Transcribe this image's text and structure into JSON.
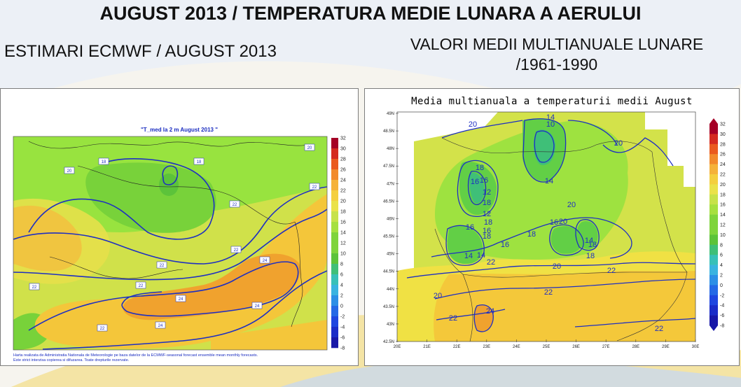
{
  "header": {
    "title": "AUGUST 2013 / TEMPERATURA MEDIE LUNARA A AERULUI",
    "left_subtitle": "ESTIMARI ECMWF / AUGUST 2013",
    "right_subtitle_line1": "VALORI MEDII MULTIANUALE LUNARE",
    "right_subtitle_line2": "/1961-1990"
  },
  "left_map": {
    "title": "\"T_med la 2 m August 2013 \"",
    "credit_line1": "Harta realizata de Administratia Nationala de Meteorologie pe baza datelor de la ECMWF-seasonal forecast ensemble mean monthly forecasts.",
    "credit_line2": "Este strict interzisa copierea si difuzarea. Toate drepturile rezervate.",
    "colorbar_labels": [
      "32",
      "30",
      "28",
      "26",
      "24",
      "22",
      "20",
      "18",
      "16",
      "14",
      "12",
      "10",
      "8",
      "6",
      "4",
      "2",
      "0",
      "-2",
      "-4",
      "-6",
      "-8"
    ],
    "contour_labels": [
      "18",
      "18",
      "20",
      "20",
      "22",
      "22",
      "22",
      "22",
      "22",
      "22",
      "22",
      "24",
      "24",
      "24",
      "24"
    ]
  },
  "right_map": {
    "title": "Media multianuala a temperaturii medii August",
    "colorbar_labels": [
      "32",
      "30",
      "28",
      "26",
      "24",
      "22",
      "20",
      "18",
      "16",
      "14",
      "12",
      "10",
      "8",
      "6",
      "4",
      "2",
      "0",
      "-2",
      "-4",
      "-6",
      "-8"
    ],
    "y_ticks": [
      "49N",
      "48.5N",
      "48N",
      "47.5N",
      "47N",
      "46.5N",
      "46N",
      "45.5N",
      "45N",
      "44.5N",
      "44N",
      "43.5N",
      "43N",
      "42.5N"
    ],
    "x_ticks": [
      "20E",
      "21E",
      "22E",
      "23E",
      "24E",
      "25E",
      "26E",
      "27E",
      "28E",
      "29E",
      "30E"
    ],
    "contour_labels": [
      "20",
      "20",
      "18",
      "16",
      "12",
      "18",
      "12",
      "18",
      "16",
      "16",
      "18",
      "14",
      "14",
      "16",
      "18",
      "16",
      "20",
      "20",
      "18",
      "22",
      "20",
      "22",
      "22",
      "24",
      "20",
      "22",
      "22",
      "14",
      "10",
      "14",
      "16",
      "14",
      "18"
    ]
  },
  "colors": {
    "accent_blue": "#1a2cc0",
    "swoosh_yellow": "#f2d56a",
    "swoosh_blue": "#b8cde9"
  }
}
